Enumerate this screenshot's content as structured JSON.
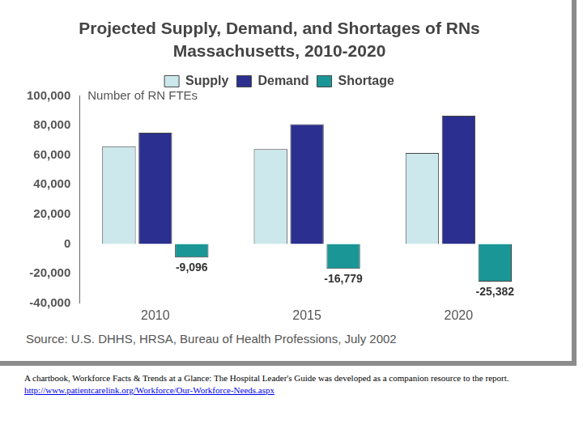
{
  "chart_data": {
    "type": "bar",
    "title": "Projected Supply, Demand, and Shortages of RNs",
    "subtitle": "Massachusetts, 2010-2020",
    "y_label": "Number of RN FTEs",
    "source": "Source: U.S. DHHS, HRSA, Bureau of Health Professions, July 2002",
    "categories": [
      "2010",
      "2015",
      "2020"
    ],
    "series": [
      {
        "name": "Supply",
        "color": "#cce8ec",
        "values": [
          66000,
          64000,
          61500
        ]
      },
      {
        "name": "Demand",
        "color": "#2b2f8f",
        "values": [
          75100,
          80800,
          86500
        ]
      },
      {
        "name": "Shortage",
        "color": "#1a9696",
        "values": [
          -9096,
          -16779,
          -25382
        ],
        "value_labels": [
          "-9,096",
          "-16,779",
          "-25,382"
        ],
        "data_labels": true
      }
    ],
    "ylim": [
      -40000,
      100000
    ],
    "yticks": [
      {
        "value": -40000,
        "label": "-40,000"
      },
      {
        "value": -20000,
        "label": "-20,000"
      },
      0,
      {
        "value": 20000,
        "label": "20,000"
      },
      {
        "value": 40000,
        "label": "40,000"
      },
      {
        "value": 60000,
        "label": "60,000"
      },
      {
        "value": 80000,
        "label": "80,000"
      },
      {
        "value": 100000,
        "label": "100,000"
      }
    ],
    "grid": false,
    "legend": "top"
  },
  "caption": "A chartbook, Workforce Facts & Trends at a Glance: The Hospital Leader's Guide was developed as a companion resource to the report.",
  "link": "http://www.patientcarelink.org/Workforce/Our-Workforce-Needs.aspx"
}
